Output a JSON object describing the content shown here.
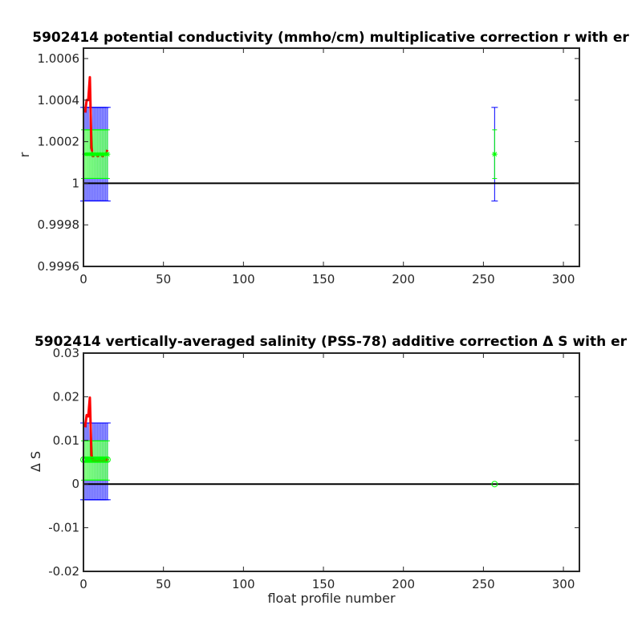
{
  "chart_data": [
    {
      "type": "line",
      "title": "5902414 potential conductivity (mmho/cm) multiplicative correction r with er",
      "xlabel": "",
      "ylabel": "r",
      "xlim": [
        0,
        310
      ],
      "ylim": [
        0.9996,
        1.00065
      ],
      "xticks": [
        0,
        50,
        100,
        150,
        200,
        250,
        300
      ],
      "yticks": [
        0.9996,
        0.9998,
        1,
        1.0002,
        1.0004,
        1.0006
      ],
      "ytick_labels": [
        "0.9996",
        "0.9998",
        "1",
        "1.0002",
        "1.0004",
        "1.0006"
      ],
      "grid": false,
      "reference_line": {
        "y": 1,
        "color": "#000000"
      },
      "series": [
        {
          "kind": "line",
          "color": "#ff0000",
          "x": [
            1,
            2,
            3,
            4,
            5,
            6,
            7,
            8,
            9,
            10,
            11,
            12,
            13,
            14,
            15
          ],
          "y": [
            1.00034,
            1.0004,
            1.0004,
            1.00051,
            1.00017,
            1.00013,
            1.00014,
            1.00014,
            1.00013,
            1.00014,
            1.00014,
            1.00013,
            1.00014,
            1.00014,
            1.00016
          ]
        },
        {
          "kind": "markers",
          "marker": "star",
          "color": "#00ff00",
          "x": [
            1,
            2,
            3,
            4,
            5,
            6,
            7,
            8,
            9,
            10,
            11,
            12,
            13,
            14,
            15,
            257
          ],
          "y": [
            1.00014,
            1.00014,
            1.00014,
            1.00014,
            1.00014,
            1.00014,
            1.00014,
            1.00014,
            1.00014,
            1.00014,
            1.00014,
            1.00014,
            1.00014,
            1.00014,
            1.00014,
            1.00014
          ]
        }
      ],
      "errorbars": [
        {
          "color": "#0000ff",
          "x": [
            0,
            1,
            2,
            3,
            4,
            5,
            6,
            7,
            8,
            9,
            10,
            11,
            12,
            13,
            14,
            15,
            257
          ],
          "center": 1.00014,
          "halfwidth": 0.000225
        },
        {
          "color": "#00ff00",
          "x": [
            0,
            1,
            2,
            3,
            4,
            5,
            6,
            7,
            8,
            9,
            10,
            11,
            12,
            13,
            14,
            15,
            257
          ],
          "center": 1.00014,
          "halfwidth": 0.000117
        }
      ]
    },
    {
      "type": "line",
      "title": "5902414 vertically-averaged salinity (PSS-78) additive correction Δ S with er",
      "xlabel": "float profile number",
      "ylabel": "Δ S",
      "xlim": [
        0,
        310
      ],
      "ylim": [
        -0.02,
        0.03
      ],
      "xticks": [
        0,
        50,
        100,
        150,
        200,
        250,
        300
      ],
      "yticks": [
        -0.02,
        -0.01,
        0,
        0.01,
        0.02,
        0.03
      ],
      "ytick_labels": [
        "-0.02",
        "-0.01",
        "0",
        "0.01",
        "0.02",
        "0.03"
      ],
      "grid": false,
      "reference_line": {
        "y": 0,
        "color": "#000000"
      },
      "series": [
        {
          "kind": "line",
          "color": "#ff0000",
          "x": [
            1,
            2,
            3,
            4,
            5,
            6,
            7,
            8,
            9,
            10,
            11,
            12,
            13,
            14,
            15
          ],
          "y": [
            0.013,
            0.0158,
            0.0155,
            0.0198,
            0.0066,
            0.0052,
            0.0055,
            0.0053,
            0.0052,
            0.0055,
            0.0053,
            0.0052,
            0.0055,
            0.0053,
            0.0058
          ]
        },
        {
          "kind": "markers",
          "marker": "circle",
          "color": "#00ff00",
          "x": [
            0,
            1,
            2,
            3,
            4,
            5,
            6,
            7,
            8,
            9,
            10,
            11,
            12,
            13,
            14,
            15,
            257
          ],
          "y": [
            0.0056,
            0.0056,
            0.0056,
            0.0056,
            0.0056,
            0.0056,
            0.0056,
            0.0056,
            0.0056,
            0.0056,
            0.0056,
            0.0056,
            0.0056,
            0.0056,
            0.0056,
            0.0056,
            0
          ]
        }
      ],
      "errorbars": [
        {
          "color": "#0000ff",
          "x": [
            0,
            1,
            2,
            3,
            4,
            5,
            6,
            7,
            8,
            9,
            10,
            11,
            12,
            13,
            14,
            15
          ],
          "center": 0.0052,
          "halfwidth": 0.0088
        },
        {
          "color": "#00ff00",
          "x": [
            0,
            1,
            2,
            3,
            4,
            5,
            6,
            7,
            8,
            9,
            10,
            11,
            12,
            13,
            14,
            15
          ],
          "center": 0.0054,
          "halfwidth": 0.0045
        }
      ]
    }
  ]
}
